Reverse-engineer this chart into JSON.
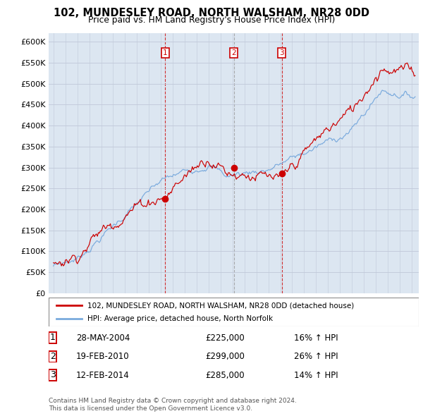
{
  "title": "102, MUNDESLEY ROAD, NORTH WALSHAM, NR28 0DD",
  "subtitle": "Price paid vs. HM Land Registry's House Price Index (HPI)",
  "ylabel_ticks": [
    "£0",
    "£50K",
    "£100K",
    "£150K",
    "£200K",
    "£250K",
    "£300K",
    "£350K",
    "£400K",
    "£450K",
    "£500K",
    "£550K",
    "£600K"
  ],
  "ytick_values": [
    0,
    50000,
    100000,
    150000,
    200000,
    250000,
    300000,
    350000,
    400000,
    450000,
    500000,
    550000,
    600000
  ],
  "ylim": [
    0,
    620000
  ],
  "legend_line1": "102, MUNDESLEY ROAD, NORTH WALSHAM, NR28 0DD (detached house)",
  "legend_line2": "HPI: Average price, detached house, North Norfolk",
  "sale_labels": [
    "1",
    "2",
    "3"
  ],
  "sale_dates": [
    "28-MAY-2004",
    "19-FEB-2010",
    "12-FEB-2014"
  ],
  "sale_prices": [
    225000,
    299000,
    285000
  ],
  "sale_hpi_pct": [
    "16% ↑ HPI",
    "26% ↑ HPI",
    "14% ↑ HPI"
  ],
  "sale_years_approx": [
    2004.37,
    2010.12,
    2014.12
  ],
  "sale_vline_colors": [
    "#cc0000",
    "#999999",
    "#cc0000"
  ],
  "footnote1": "Contains HM Land Registry data © Crown copyright and database right 2024.",
  "footnote2": "This data is licensed under the Open Government Licence v3.0.",
  "red_color": "#cc0000",
  "blue_color": "#7aaadd",
  "bg_color": "#dce6f1",
  "grid_color": "#c0c8d8",
  "box_border_color": "#cc0000"
}
